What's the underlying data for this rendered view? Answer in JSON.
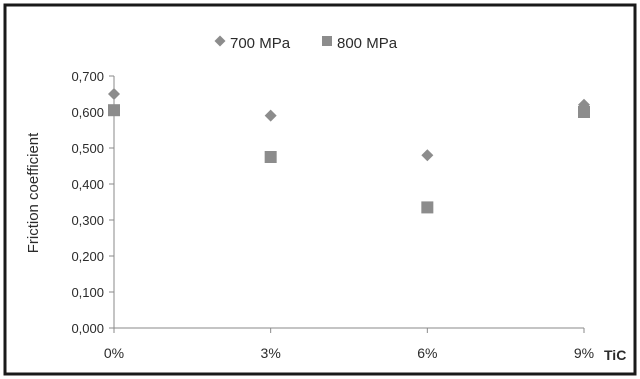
{
  "chart_data": {
    "type": "scatter",
    "title": "",
    "xlabel": "TiC",
    "ylabel": "Friction coefficient",
    "categories": [
      "0%",
      "3%",
      "6%",
      "9%"
    ],
    "x": [
      0,
      3,
      6,
      9
    ],
    "ylim": [
      0,
      0.7
    ],
    "yticks": [
      "0,000",
      "0,100",
      "0,200",
      "0,300",
      "0,400",
      "0,500",
      "0,600",
      "0,700"
    ],
    "ytick_values": [
      0,
      0.1,
      0.2,
      0.3,
      0.4,
      0.5,
      0.6,
      0.7
    ],
    "grid": false,
    "legend_position": "top",
    "series": [
      {
        "name": "700 MPa",
        "marker": "diamond",
        "color": "#8c8c8c",
        "values": [
          0.65,
          0.59,
          0.48,
          0.62
        ]
      },
      {
        "name": "800 MPa",
        "marker": "square",
        "color": "#8c8c8c",
        "values": [
          0.605,
          0.475,
          0.335,
          0.6
        ]
      }
    ]
  }
}
